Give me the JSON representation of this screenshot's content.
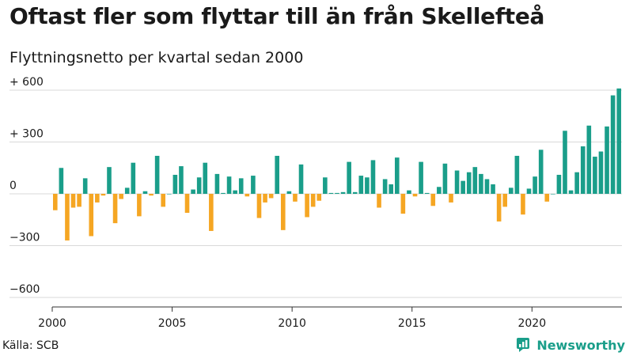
{
  "header": {
    "title": "Oftast fler som flyttar till än från Skellefteå",
    "subtitle": "Flyttningsnetto per kvartal sedan 2000"
  },
  "footer": {
    "source": "Källa: SCB",
    "brand": "Newsworthy"
  },
  "colors": {
    "positive": "#1a9e8a",
    "negative": "#f5a623",
    "grid": "#d9d9d9",
    "axis": "#333333"
  },
  "chart_data": {
    "type": "bar",
    "title": "Oftast fler som flyttar till än från Skellefteå",
    "subtitle": "Flyttningsnetto per kvartal sedan 2000",
    "xlabel": "",
    "ylabel": "",
    "x_start_year": 2000,
    "periods_per_year": 4,
    "x_ticks": [
      "2000",
      "2005",
      "2010",
      "2015",
      "2020"
    ],
    "y_ticks": [
      {
        "value": 600,
        "label": "+ 600"
      },
      {
        "value": 300,
        "label": "+ 300"
      },
      {
        "value": 0,
        "label": "0"
      },
      {
        "value": -300,
        "label": "−300"
      },
      {
        "value": -600,
        "label": "−600"
      }
    ],
    "ylim": [
      -600,
      600
    ],
    "grid": true,
    "values": [
      -95,
      150,
      -270,
      -80,
      -75,
      90,
      -245,
      -50,
      -10,
      155,
      -170,
      -30,
      35,
      180,
      -130,
      15,
      -10,
      220,
      -75,
      0,
      110,
      160,
      -110,
      25,
      95,
      180,
      -215,
      115,
      5,
      100,
      20,
      90,
      -15,
      105,
      -140,
      -50,
      -25,
      220,
      -210,
      15,
      -45,
      170,
      -135,
      -75,
      -40,
      95,
      5,
      5,
      10,
      185,
      10,
      105,
      95,
      195,
      -80,
      85,
      55,
      210,
      -115,
      20,
      -15,
      185,
      5,
      -70,
      40,
      175,
      -50,
      135,
      75,
      125,
      155,
      115,
      85,
      55,
      -160,
      -75,
      35,
      220,
      -120,
      30,
      100,
      255,
      -45,
      0,
      110,
      365,
      20,
      125,
      275,
      395,
      215,
      245,
      390,
      570,
      610
    ]
  }
}
